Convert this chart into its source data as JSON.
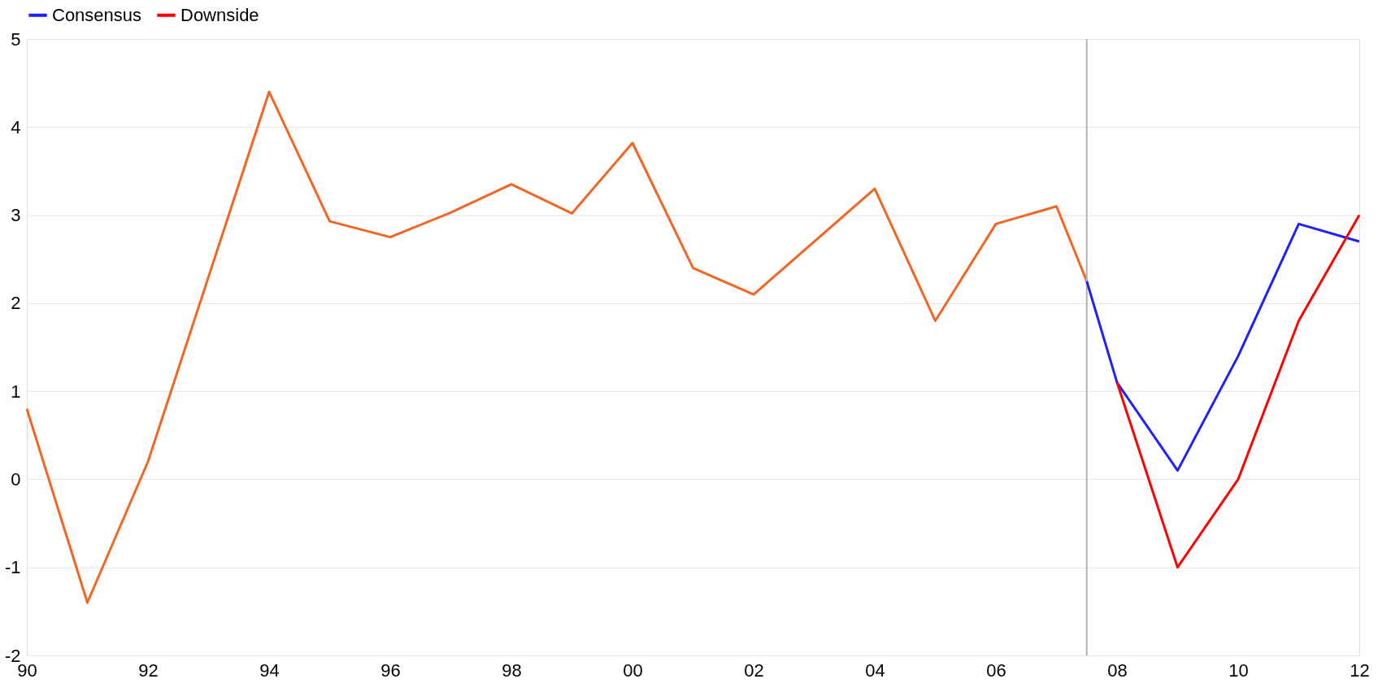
{
  "chart_data": {
    "type": "line",
    "series": [
      {
        "color": "#f26522",
        "x": [
          1990,
          1991,
          1992,
          1993,
          1994,
          1995,
          1996,
          1997,
          1998,
          1999,
          2000,
          2001,
          2002,
          2003,
          2004,
          2005,
          2006,
          2007,
          2007.5
        ],
        "values": [
          0.8,
          -1.4,
          0.2,
          2.3,
          4.4,
          2.93,
          2.75,
          3.03,
          3.35,
          3.02,
          3.82,
          2.4,
          2.1,
          2.7,
          3.3,
          1.8,
          2.9,
          3.1,
          2.25
        ]
      },
      {
        "name": "Consensus",
        "color": "#2020ff",
        "x": [
          2007.5,
          2008,
          2009,
          2010,
          2011,
          2012
        ],
        "values": [
          2.25,
          1.1,
          0.1,
          1.4,
          2.9,
          2.7
        ]
      },
      {
        "name": "Downside",
        "color": "#ff0000",
        "x": [
          2008,
          2009,
          2010,
          2011,
          2012
        ],
        "values": [
          1.1,
          -1.0,
          0.0,
          1.8,
          3.0
        ]
      }
    ],
    "xlim": [
      1990,
      2012
    ],
    "xticks": [
      {
        "value": 1990,
        "label": "90"
      },
      {
        "value": 1992,
        "label": "92"
      },
      {
        "value": 1994,
        "label": "94"
      },
      {
        "value": 1996,
        "label": "96"
      },
      {
        "value": 1998,
        "label": "98"
      },
      {
        "value": 2000,
        "label": "00"
      },
      {
        "value": 2002,
        "label": "02"
      },
      {
        "value": 2004,
        "label": "04"
      },
      {
        "value": 2006,
        "label": "06"
      },
      {
        "value": 2008,
        "label": "08"
      },
      {
        "value": 2010,
        "label": "10"
      },
      {
        "value": 2012,
        "label": "12"
      }
    ],
    "ylim": [
      -2,
      5
    ],
    "yticks": [
      -2,
      -1,
      0,
      1,
      2,
      3,
      4,
      5
    ],
    "ref_lines": [
      {
        "axis": "x",
        "value": 2007.5,
        "color": "#b0b0b0"
      }
    ],
    "grid": "y",
    "legend": "top",
    "line_style": "solid",
    "marker": "none"
  }
}
